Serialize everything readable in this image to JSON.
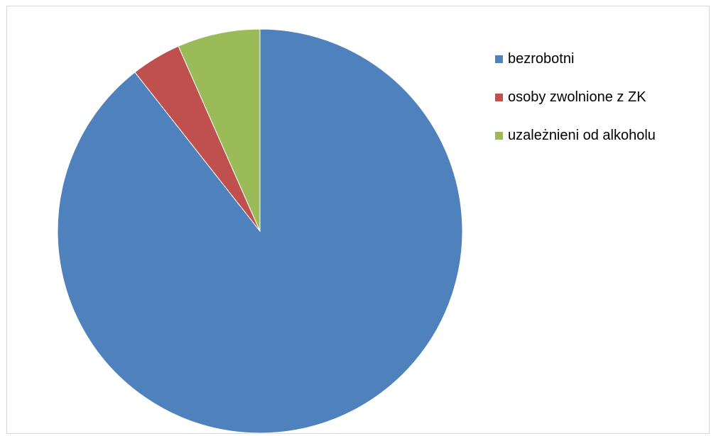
{
  "chart_data": {
    "type": "pie",
    "categories": [
      "bezrobotni",
      "osoby zwolnione z ZK",
      "uzależnieni od alkoholu"
    ],
    "values": [
      89.4,
      4.0,
      6.6
    ],
    "colors": [
      "#4f81bd",
      "#c0504d",
      "#9bbb59"
    ],
    "start_angle": "top",
    "direction": "clockwise",
    "legend_position": "right",
    "title": "",
    "show_data_labels": false
  }
}
